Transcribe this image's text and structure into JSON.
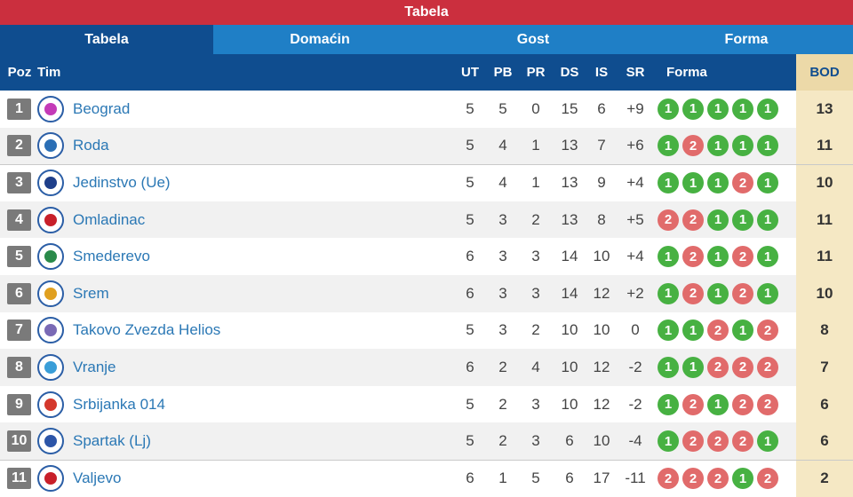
{
  "title": "Tabela",
  "tabs": [
    {
      "label": "Tabela",
      "active": true
    },
    {
      "label": "Domaćin",
      "active": false
    },
    {
      "label": "Gost",
      "active": false
    },
    {
      "label": "Forma",
      "active": false
    }
  ],
  "columns": [
    "Poz",
    "Tim",
    "UT",
    "PB",
    "PR",
    "DS",
    "IS",
    "SR",
    "Forma",
    "BOD"
  ],
  "colors": {
    "accent": "#0f4d8f",
    "title": "#cb2f3e",
    "win": "#47b142",
    "loss": "#e16b6b",
    "bod": "#ecd9a8"
  },
  "rows": [
    {
      "pos": "1",
      "trend": "",
      "team": "Beograd",
      "logo_color": "#c43bb7",
      "ut": "5",
      "pb": "5",
      "pr": "0",
      "ds": "15",
      "is": "6",
      "sr": "+9",
      "form": [
        "1",
        "1",
        "1",
        "1",
        "1"
      ],
      "bod": "13"
    },
    {
      "pos": "2",
      "trend": "",
      "team": "Roda",
      "logo_color": "#2b6fb5",
      "ut": "5",
      "pb": "4",
      "pr": "1",
      "ds": "13",
      "is": "7",
      "sr": "+6",
      "form": [
        "1",
        "2",
        "1",
        "1",
        "1"
      ],
      "bod": "11"
    },
    {
      "pos": "3",
      "trend": "up",
      "team": "Jedinstvo (Ue)",
      "logo_color": "#1e3f8a",
      "ut": "5",
      "pb": "4",
      "pr": "1",
      "ds": "13",
      "is": "9",
      "sr": "+4",
      "form": [
        "1",
        "1",
        "1",
        "2",
        "1"
      ],
      "bod": "10"
    },
    {
      "pos": "4",
      "trend": "down",
      "team": "Omladinac",
      "logo_color": "#c8202a",
      "ut": "5",
      "pb": "3",
      "pr": "2",
      "ds": "13",
      "is": "8",
      "sr": "+5",
      "form": [
        "2",
        "2",
        "1",
        "1",
        "1"
      ],
      "bod": "11"
    },
    {
      "pos": "5",
      "trend": "up",
      "team": "Smederevo",
      "logo_color": "#2a8a4a",
      "ut": "6",
      "pb": "3",
      "pr": "3",
      "ds": "14",
      "is": "10",
      "sr": "+4",
      "form": [
        "1",
        "2",
        "1",
        "2",
        "1"
      ],
      "bod": "11"
    },
    {
      "pos": "6",
      "trend": "up",
      "team": "Srem",
      "logo_color": "#e0a020",
      "ut": "6",
      "pb": "3",
      "pr": "3",
      "ds": "14",
      "is": "12",
      "sr": "+2",
      "form": [
        "1",
        "2",
        "1",
        "2",
        "1"
      ],
      "bod": "10"
    },
    {
      "pos": "7",
      "trend": "down",
      "team": "Takovo Zvezda Helios",
      "logo_color": "#7a6ab5",
      "ut": "5",
      "pb": "3",
      "pr": "2",
      "ds": "10",
      "is": "10",
      "sr": "0",
      "form": [
        "1",
        "1",
        "2",
        "1",
        "2"
      ],
      "bod": "8"
    },
    {
      "pos": "8",
      "trend": "",
      "team": "Vranje",
      "logo_color": "#3a9ed8",
      "ut": "6",
      "pb": "2",
      "pr": "4",
      "ds": "10",
      "is": "12",
      "sr": "-2",
      "form": [
        "1",
        "1",
        "2",
        "2",
        "2"
      ],
      "bod": "7"
    },
    {
      "pos": "9",
      "trend": "",
      "team": "Srbijanka 014",
      "logo_color": "#d4382c",
      "ut": "5",
      "pb": "2",
      "pr": "3",
      "ds": "10",
      "is": "12",
      "sr": "-2",
      "form": [
        "1",
        "2",
        "1",
        "2",
        "2"
      ],
      "bod": "6"
    },
    {
      "pos": "10",
      "trend": "",
      "team": "Spartak (Lj)",
      "logo_color": "#2c55a8",
      "ut": "5",
      "pb": "2",
      "pr": "3",
      "ds": "6",
      "is": "10",
      "sr": "-4",
      "form": [
        "1",
        "2",
        "2",
        "2",
        "1"
      ],
      "bod": "6"
    },
    {
      "pos": "11",
      "trend": "",
      "team": "Valjevo",
      "logo_color": "#c8202a",
      "ut": "6",
      "pb": "1",
      "pr": "5",
      "ds": "6",
      "is": "17",
      "sr": "-11",
      "form": [
        "2",
        "2",
        "2",
        "1",
        "2"
      ],
      "bod": "2"
    }
  ]
}
